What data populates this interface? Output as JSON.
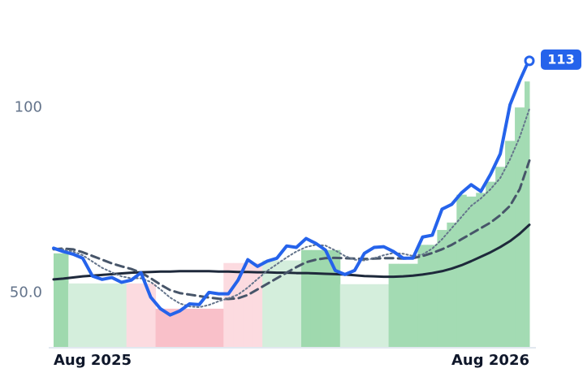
{
  "chart_data": {
    "type": "line",
    "categories": [
      "Aug 2025",
      null,
      null,
      null,
      null,
      null,
      null,
      null,
      null,
      null,
      null,
      null,
      null,
      null,
      null,
      null,
      null,
      null,
      null,
      null,
      null,
      null,
      null,
      null,
      null,
      null,
      null,
      null,
      null,
      null,
      null,
      null,
      null,
      null,
      null,
      null,
      null,
      null,
      null,
      null,
      null,
      null,
      null,
      null,
      null,
      null,
      null,
      null,
      null,
      "Aug 2026"
    ],
    "ylim": [
      35.5,
      118
    ],
    "yticks": [
      {
        "value": 50,
        "label": "50.0"
      },
      100
    ],
    "bands": {
      "values": [
        60.7,
        60.7,
        52.6,
        52.6,
        52.6,
        52.6,
        52.6,
        52.6,
        52.6,
        52.6,
        52.6,
        45.8,
        45.8,
        45.8,
        45.8,
        45.8,
        45.8,
        45.8,
        58.1,
        58.1,
        58.1,
        58.1,
        58.8,
        58.8,
        58.8,
        58.8,
        61.6,
        61.6,
        61.6,
        61.6,
        52.4,
        52.4,
        52.4,
        52.4,
        52.4,
        57.9,
        57.9,
        57.9,
        63,
        63,
        67,
        69,
        76.5,
        76,
        77,
        80,
        84,
        91,
        100,
        107
      ],
      "colors": [
        "#9fd9ae",
        "#9fd9ae",
        "#d4eedc",
        "#d4eedc",
        "#d4eedc",
        "#d4eedc",
        "#d4eedc",
        "#d4eedc",
        "#fcdbe0",
        "#fcdbe0",
        "#fcdbe0",
        "#f9c0c9",
        "#f9c0c9",
        "#f9c0c9",
        "#f9c0c9",
        "#f9c0c9",
        "#f9c0c9",
        "#f9c0c9",
        "#fcdbe0",
        "#fcdbe0",
        "#fcdbe0",
        "#fcdbe0",
        "#d4eedc",
        "#d4eedc",
        "#d4eedc",
        "#d4eedc",
        "#9fd9ae",
        "#9fd9ae",
        "#9fd9ae",
        "#9fd9ae",
        "#d4eedc",
        "#d4eedc",
        "#d4eedc",
        "#d4eedc",
        "#d4eedc",
        "#a3dbb3",
        "#a3dbb3",
        "#a3dbb3",
        "#a3dbb3",
        "#a3dbb3",
        "#a3dbb3",
        "#a3dbb3",
        "#a3dbb3",
        "#a3dbb3",
        "#a3dbb3",
        "#a3dbb3",
        "#a3dbb3",
        "#a3dbb3",
        "#a3dbb3",
        "#a3dbb3"
      ]
    },
    "series": [
      {
        "color": "#1e293b",
        "dash": "solid",
        "width": 3,
        "values": [
          53.7,
          53.9,
          54.2,
          54.5,
          54.7,
          54.9,
          55.1,
          55.3,
          55.5,
          55.6,
          55.7,
          55.8,
          55.8,
          55.9,
          55.9,
          55.9,
          55.9,
          55.8,
          55.8,
          55.7,
          55.7,
          55.6,
          55.6,
          55.5,
          55.5,
          55.4,
          55.4,
          55.3,
          55.2,
          55.1,
          55.0,
          54.8,
          54.6,
          54.5,
          54.4,
          54.4,
          54.5,
          54.7,
          55.0,
          55.4,
          55.9,
          56.6,
          57.5,
          58.6,
          59.8,
          61.0,
          62.4,
          64.0,
          66.0,
          68.4
        ]
      },
      {
        "color": "#475569",
        "dash": "dashed",
        "width": 3,
        "values": [
          61.8,
          62.0,
          61.8,
          61.0,
          60.0,
          59.0,
          58.0,
          57.2,
          56.5,
          55.5,
          54.0,
          52.3,
          50.8,
          50.0,
          49.6,
          49.2,
          48.8,
          48.5,
          48.4,
          48.6,
          49.5,
          51.0,
          52.5,
          54.0,
          55.5,
          57.0,
          58.3,
          59.0,
          59.4,
          59.5,
          59.4,
          59.3,
          59.2,
          59.3,
          59.4,
          59.4,
          59.3,
          59.4,
          60.0,
          60.8,
          61.8,
          63.0,
          64.5,
          66.0,
          67.5,
          69.0,
          71.0,
          73.5,
          78.0,
          85.7
        ]
      },
      {
        "color": "#64748b",
        "dash": "dotted",
        "width": 2,
        "values": [
          62.0,
          61.8,
          61.2,
          60.2,
          58.5,
          56.8,
          55.6,
          54.5,
          54.0,
          54.0,
          53.0,
          51.0,
          48.8,
          47.2,
          46.4,
          46.2,
          46.8,
          47.8,
          48.6,
          49.6,
          51.5,
          53.8,
          56.0,
          57.8,
          59.6,
          61.2,
          62.4,
          63.0,
          62.8,
          61.5,
          60.0,
          59.0,
          58.8,
          59.4,
          60.2,
          60.8,
          60.6,
          60.0,
          60.4,
          62.0,
          64.5,
          67.5,
          70.5,
          73.5,
          75.5,
          78.0,
          81.0,
          86.0,
          92.0,
          99.6
        ]
      },
      {
        "color": "#2563eb",
        "dash": "solid",
        "width": 4,
        "values": [
          62.1,
          61.2,
          60.5,
          59.4,
          54.6,
          53.7,
          54.2,
          52.9,
          53.5,
          55.5,
          48.9,
          45.8,
          44.1,
          45.2,
          47.1,
          46.9,
          50.2,
          49.8,
          49.8,
          53.5,
          59.0,
          57.2,
          58.6,
          59.4,
          62.7,
          62.3,
          64.7,
          63.4,
          61.6,
          56.1,
          55.0,
          56.1,
          60.7,
          62.3,
          62.5,
          61.2,
          59.4,
          59.4,
          65.1,
          65.6,
          72.6,
          73.9,
          77.0,
          79.2,
          77.4,
          82.0,
          87.5,
          100.7,
          107.2,
          113
        ],
        "last_label": "113"
      }
    ]
  }
}
